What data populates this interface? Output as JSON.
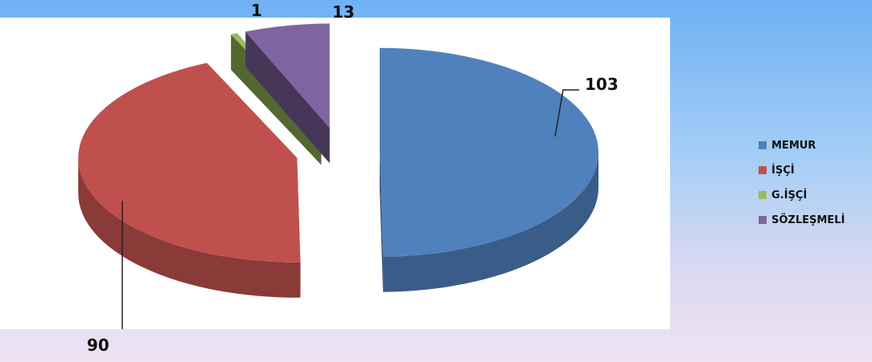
{
  "chart_data": {
    "type": "pie",
    "title": "",
    "categories": [
      "MEMUR",
      "İŞÇİ",
      "G.İŞÇİ",
      "SÖZLEŞMELİ"
    ],
    "values": [
      103,
      90,
      1,
      13
    ],
    "colors": {
      "MEMUR": "#4f81bd",
      "İŞÇİ": "#c0504d",
      "G.İŞÇİ": "#9bbb59",
      "SÖZLEŞMELİ": "#8064a2"
    },
    "style": "3d-exploded",
    "legend_position": "right",
    "data_labels": [
      "103",
      "90",
      "1",
      "13"
    ]
  }
}
